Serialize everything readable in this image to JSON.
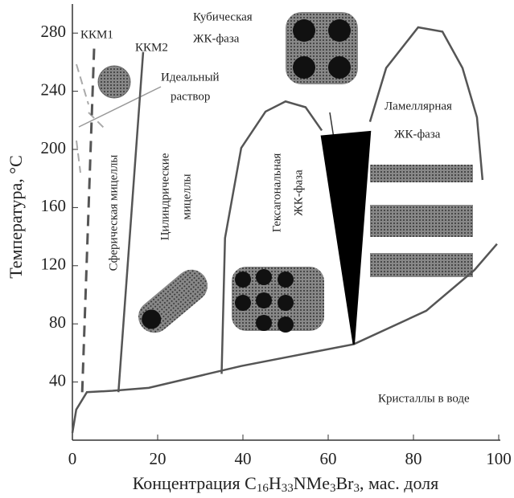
{
  "chart_data": {
    "type": "phase-diagram",
    "ylabel": "Температура, °C",
    "xlabel_parts": [
      "Концентрация C",
      "16",
      "H",
      "33",
      "NMe",
      "3",
      "Br",
      "3",
      ", мас. доля"
    ],
    "xlim": [
      0,
      100
    ],
    "xticks": [
      0,
      20,
      40,
      60,
      80,
      100
    ],
    "ylim": [
      0,
      300
    ],
    "yticks": [
      40,
      80,
      120,
      160,
      200,
      240,
      280
    ],
    "annotations": [
      [
        "ККМ1"
      ],
      [
        "ККМ2"
      ],
      [
        "Идеальный",
        "раствор"
      ],
      [
        "Кубическая",
        "ЖК-фаза"
      ],
      [
        "Ламеллярная",
        "ЖК-фаза"
      ],
      [
        "Сферическая мицеллы"
      ],
      [
        "Цилиндрические",
        "мицеллы"
      ],
      [
        "Гексагональная",
        "ЖК-фаза"
      ],
      [
        "Кристаллы в воде"
      ]
    ],
    "series": [
      {
        "color": "#555",
        "dash": true,
        "x": [
          2.3,
          5.1
        ],
        "values": [
          33,
          270
        ]
      },
      {
        "color": "#555",
        "x": [
          10.8,
          16.6
        ],
        "values": [
          33,
          267
        ]
      },
      {
        "color": "#555",
        "x": [
          0,
          0.9,
          3.4,
          9.4,
          17.9,
          39.6,
          66,
          83,
          94.3,
          99.6
        ],
        "values": [
          5,
          21,
          33,
          34,
          36,
          51,
          66,
          89,
          117,
          135
        ]
      },
      {
        "color": "#555",
        "x": [
          35,
          35.8,
          39.6,
          45.3,
          50,
          54.7,
          58.5
        ],
        "values": [
          45.6,
          139,
          201,
          226,
          233,
          229,
          213
        ]
      },
      {
        "color": "#555",
        "x": [
          69.8,
          73.6,
          81.1,
          86.8,
          91.5,
          94.9,
          96.2
        ],
        "values": [
          219,
          256,
          284,
          281,
          256,
          222,
          179
        ]
      },
      {
        "color": "#000",
        "fill": true,
        "x": [
          58.5,
          69.8,
          66
        ],
        "values": [
          209,
          212,
          66
        ]
      }
    ]
  }
}
